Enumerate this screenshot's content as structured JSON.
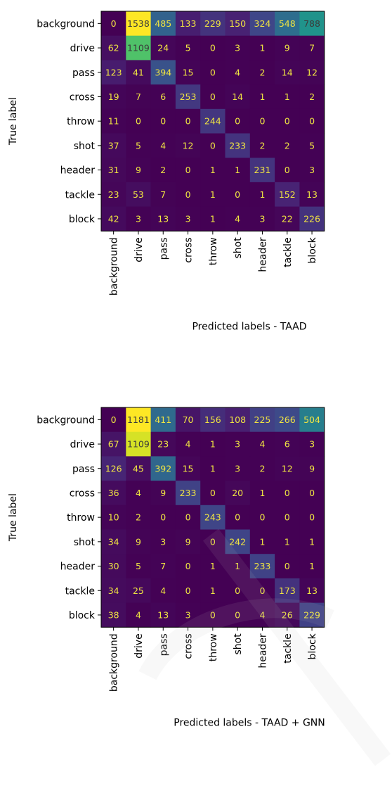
{
  "chart_data": [
    {
      "type": "heatmap",
      "title": "",
      "xlabel": "Predicted labels - TAAD",
      "ylabel": "True label",
      "x_categories": [
        "background",
        "drive",
        "pass",
        "cross",
        "throw",
        "shot",
        "header",
        "tackle",
        "block"
      ],
      "y_categories": [
        "background",
        "drive",
        "pass",
        "cross",
        "throw",
        "shot",
        "header",
        "tackle",
        "block"
      ],
      "colormap": "viridis",
      "vmin": 0,
      "vmax": 1538,
      "values": [
        [
          0,
          1538,
          485,
          133,
          229,
          150,
          324,
          548,
          788
        ],
        [
          62,
          1109,
          24,
          5,
          0,
          3,
          1,
          9,
          7
        ],
        [
          123,
          41,
          394,
          15,
          0,
          4,
          2,
          14,
          12
        ],
        [
          19,
          7,
          6,
          253,
          0,
          14,
          1,
          1,
          2
        ],
        [
          11,
          0,
          0,
          0,
          244,
          0,
          0,
          0,
          0
        ],
        [
          37,
          5,
          4,
          12,
          0,
          233,
          2,
          2,
          5
        ],
        [
          31,
          9,
          2,
          0,
          1,
          1,
          231,
          0,
          3
        ],
        [
          23,
          53,
          7,
          0,
          1,
          0,
          1,
          152,
          13
        ],
        [
          42,
          3,
          13,
          3,
          1,
          4,
          3,
          22,
          226
        ]
      ]
    },
    {
      "type": "heatmap",
      "title": "",
      "xlabel": "Predicted labels - TAAD + GNN",
      "ylabel": "True label",
      "x_categories": [
        "background",
        "drive",
        "pass",
        "cross",
        "throw",
        "shot",
        "header",
        "tackle",
        "block"
      ],
      "y_categories": [
        "background",
        "drive",
        "pass",
        "cross",
        "throw",
        "shot",
        "header",
        "tackle",
        "block"
      ],
      "colormap": "viridis",
      "vmin": 0,
      "vmax": 1181,
      "values": [
        [
          0,
          1181,
          411,
          70,
          156,
          108,
          225,
          266,
          504
        ],
        [
          67,
          1109,
          23,
          4,
          1,
          3,
          4,
          6,
          3
        ],
        [
          126,
          45,
          392,
          15,
          1,
          3,
          2,
          12,
          9
        ],
        [
          36,
          4,
          9,
          233,
          0,
          20,
          1,
          0,
          0
        ],
        [
          10,
          2,
          0,
          0,
          243,
          0,
          0,
          0,
          0
        ],
        [
          34,
          9,
          3,
          9,
          0,
          242,
          1,
          1,
          1
        ],
        [
          30,
          5,
          7,
          0,
          1,
          1,
          233,
          0,
          1
        ],
        [
          34,
          25,
          4,
          0,
          1,
          0,
          0,
          173,
          13
        ],
        [
          38,
          4,
          13,
          3,
          0,
          0,
          4,
          26,
          229
        ]
      ]
    }
  ]
}
